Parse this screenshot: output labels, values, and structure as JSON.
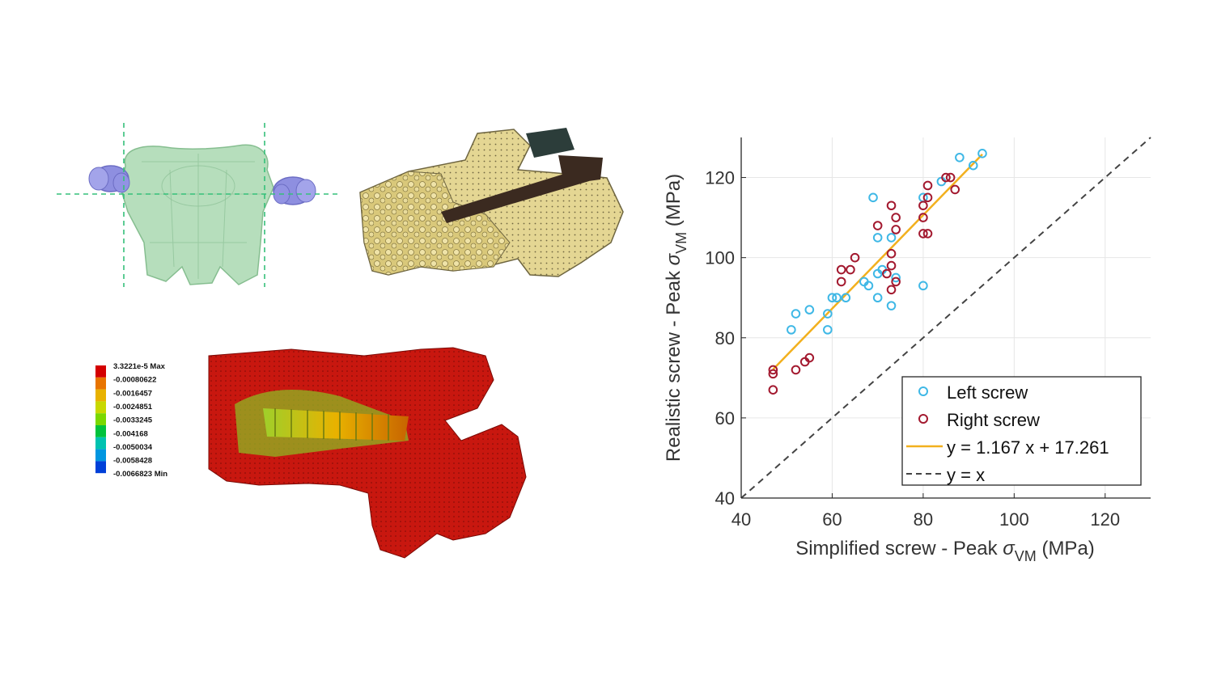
{
  "colors": {
    "left_screw": "#3fb8e6",
    "right_screw": "#a3192f",
    "fit_line": "#f2b01e",
    "identity_line": "#444444",
    "grid": "#e6e6e6",
    "bone_beige": "#e4d693",
    "stress_red": "#c8170f",
    "transparent_green": "#a9d8b0",
    "screw_purple": "#8e8fe0"
  },
  "panels": {
    "transparent_vertebra": {
      "label": ""
    },
    "meshed_vertebra": {
      "label": ""
    },
    "stress_contour": {
      "colorbar_labels": [
        "3.3221e-5 Max",
        "-0.00080622",
        "-0.0016457",
        "-0.0024851",
        "-0.0033245",
        "-0.004168",
        "-0.0050034",
        "-0.0058428",
        "-0.0066823 Min"
      ],
      "colorbar_colors": [
        "#d40000",
        "#e87400",
        "#e8b200",
        "#c8d800",
        "#7ad800",
        "#00c23c",
        "#00c2b0",
        "#0096e0",
        "#0040d8"
      ]
    }
  },
  "chart_data": {
    "type": "scatter",
    "xlabel_main": "Simplified screw - Peak ",
    "xlabel_symbol": "σ",
    "xlabel_sub": "VM",
    "xlabel_unit": " (MPa)",
    "ylabel_main": "Realistic screw - Peak ",
    "ylabel_symbol": "σ",
    "ylabel_sub": "VM",
    "ylabel_unit": " (MPa)",
    "xlim": [
      40,
      130
    ],
    "ylim": [
      40,
      130
    ],
    "xticks": [
      40,
      60,
      80,
      100,
      120
    ],
    "yticks": [
      40,
      60,
      80,
      100,
      120
    ],
    "grid": true,
    "legend_position": "bottom-right",
    "series": [
      {
        "name": "Left screw",
        "marker": "circle",
        "points": [
          [
            51,
            82
          ],
          [
            52,
            86
          ],
          [
            55,
            87
          ],
          [
            59,
            82
          ],
          [
            59,
            86
          ],
          [
            60,
            90
          ],
          [
            61,
            90
          ],
          [
            63,
            90
          ],
          [
            67,
            94
          ],
          [
            68,
            93
          ],
          [
            69,
            115
          ],
          [
            70,
            105
          ],
          [
            70,
            96
          ],
          [
            70,
            90
          ],
          [
            71,
            97
          ],
          [
            73,
            105
          ],
          [
            73,
            88
          ],
          [
            74,
            95
          ],
          [
            80,
            93
          ],
          [
            80,
            115
          ],
          [
            84,
            119
          ],
          [
            88,
            125
          ],
          [
            91,
            123
          ],
          [
            93,
            126
          ]
        ]
      },
      {
        "name": "Right screw",
        "marker": "circle",
        "points": [
          [
            47,
            72
          ],
          [
            47,
            71
          ],
          [
            47,
            67
          ],
          [
            52,
            72
          ],
          [
            54,
            74
          ],
          [
            55,
            75
          ],
          [
            62,
            94
          ],
          [
            62,
            97
          ],
          [
            64,
            97
          ],
          [
            65,
            100
          ],
          [
            70,
            108
          ],
          [
            72,
            96
          ],
          [
            73,
            101
          ],
          [
            73,
            98
          ],
          [
            73,
            113
          ],
          [
            73,
            92
          ],
          [
            74,
            110
          ],
          [
            74,
            94
          ],
          [
            74,
            107
          ],
          [
            80,
            113
          ],
          [
            80,
            110
          ],
          [
            80,
            106
          ],
          [
            81,
            118
          ],
          [
            81,
            115
          ],
          [
            81,
            106
          ],
          [
            85,
            120
          ],
          [
            86,
            120
          ],
          [
            87,
            117
          ]
        ]
      },
      {
        "name": "y = 1.167 x + 17.261",
        "type": "line",
        "slope": 1.167,
        "intercept": 17.261,
        "x_range": [
          47,
          93
        ]
      },
      {
        "name": "y = x",
        "type": "line",
        "style": "dashed",
        "slope": 1,
        "intercept": 0,
        "x_range": [
          40,
          130
        ]
      }
    ]
  }
}
